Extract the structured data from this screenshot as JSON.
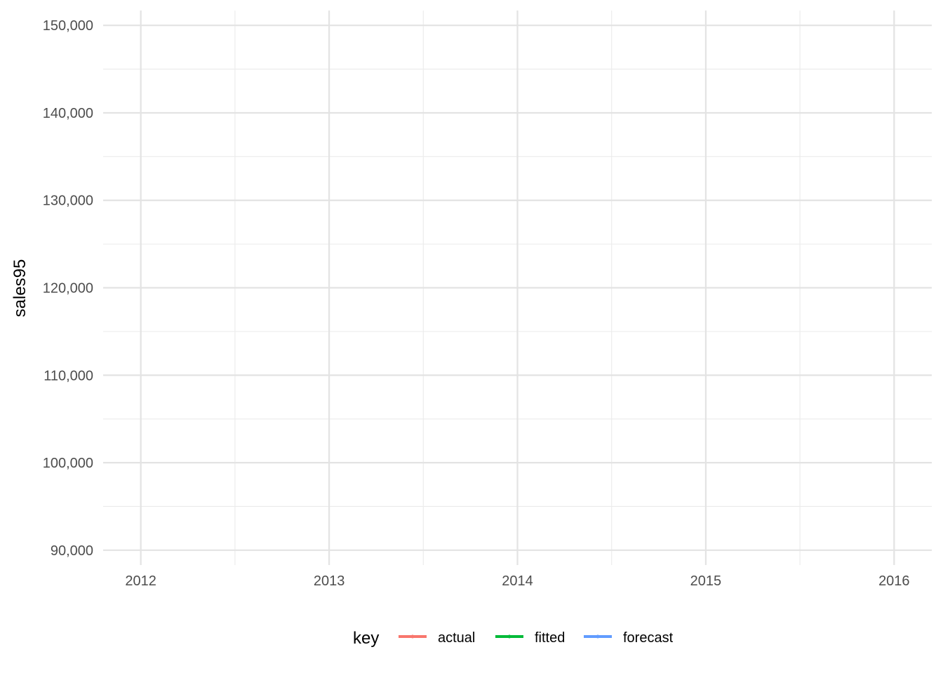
{
  "chart_data": {
    "type": "line",
    "title": "",
    "xlabel": "",
    "ylabel": "sales95",
    "xlim": [
      2011.8,
      2016.2
    ],
    "ylim": [
      88300,
      151700
    ],
    "x_ticks": [
      2012,
      2013,
      2014,
      2015,
      2016
    ],
    "x_tick_labels": [
      "2012",
      "2013",
      "2014",
      "2015",
      "2016"
    ],
    "x_minor_ticks": [
      2012.5,
      2013.5,
      2014.5,
      2015.5
    ],
    "y_ticks": [
      90000,
      100000,
      110000,
      120000,
      130000,
      140000,
      150000
    ],
    "y_tick_labels": [
      "90,000",
      "100,000",
      "110,000",
      "120,000",
      "130,000",
      "140,000",
      "150,000"
    ],
    "y_minor_ticks": [
      95000,
      105000,
      115000,
      125000,
      135000,
      145000
    ],
    "grid": true,
    "legend": {
      "title": "key",
      "position": "bottom",
      "entries": [
        {
          "label": "actual",
          "color": "#F8766D"
        },
        {
          "label": "fitted",
          "color": "#00BA38"
        },
        {
          "label": "forecast",
          "color": "#619CFF"
        }
      ]
    },
    "series": [
      {
        "name": "actual",
        "color": "#F8766D",
        "x": [],
        "y": []
      },
      {
        "name": "fitted",
        "color": "#00BA38",
        "x": [],
        "y": []
      },
      {
        "name": "forecast",
        "color": "#619CFF",
        "x": [],
        "y": []
      }
    ]
  }
}
